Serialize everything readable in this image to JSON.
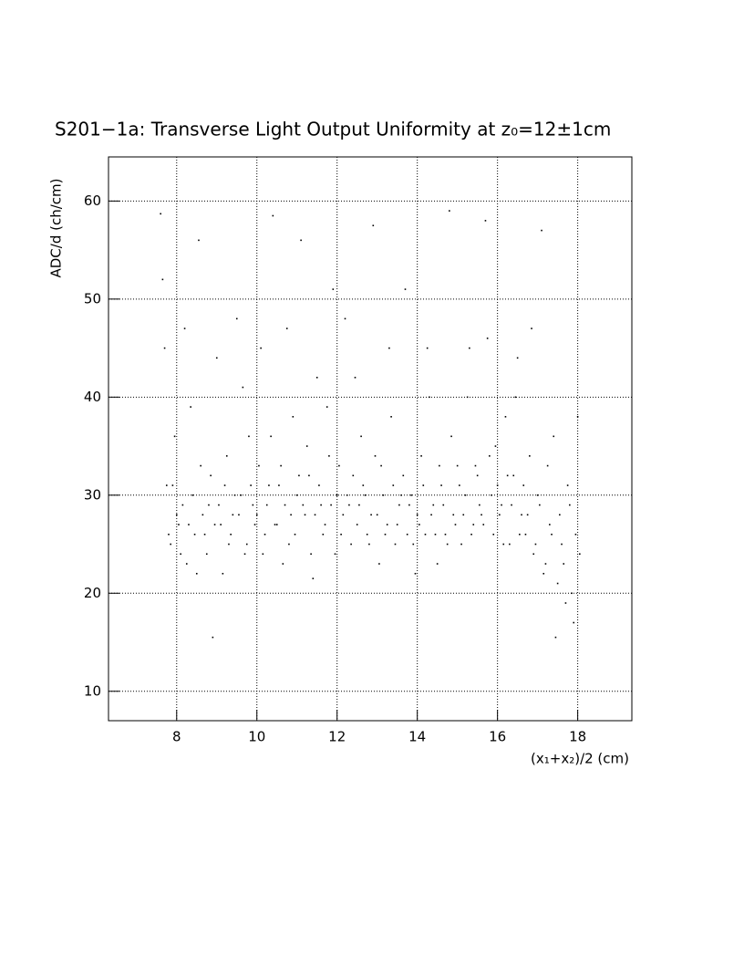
{
  "chart_data": {
    "type": "scatter",
    "title": "S201−1a: Transverse Light Output Uniformity at z₀=12±1cm",
    "x_label": "(x₁+x₂)/2 (cm)",
    "y_label": "ADC/d (ch/cm)",
    "color": "#000000",
    "grid": true,
    "xlim": [
      6.3,
      19.35
    ],
    "ylim": [
      7,
      64.5
    ],
    "xticks": [
      8,
      10,
      12,
      14,
      16,
      18
    ],
    "yticks": [
      10,
      20,
      30,
      40,
      50,
      60
    ],
    "x": [
      7.6,
      7.7,
      7.8,
      7.9,
      8.0,
      8.1,
      8.2,
      8.3,
      8.4,
      8.5,
      8.6,
      8.7,
      8.8,
      8.9,
      9.0,
      9.1,
      9.2,
      9.3,
      9.4,
      9.5,
      9.6,
      9.7,
      9.8,
      9.9,
      10.0,
      10.1,
      10.2,
      10.3,
      10.4,
      10.5,
      10.6,
      10.7,
      10.8,
      10.9,
      11.0,
      11.1,
      11.2,
      11.3,
      11.4,
      11.5,
      11.6,
      11.7,
      11.8,
      11.9,
      12.0,
      12.1,
      12.2,
      12.3,
      12.4,
      12.5,
      12.6,
      12.7,
      12.8,
      12.9,
      13.0,
      13.1,
      13.2,
      13.3,
      13.4,
      13.5,
      13.6,
      13.7,
      13.8,
      13.9,
      14.0,
      14.1,
      14.2,
      14.3,
      14.4,
      14.5,
      14.6,
      14.7,
      14.8,
      14.9,
      15.0,
      15.1,
      15.2,
      15.3,
      15.4,
      15.5,
      15.6,
      15.7,
      15.8,
      15.9,
      16.0,
      16.1,
      16.2,
      16.3,
      16.4,
      16.5,
      16.6,
      16.7,
      16.8,
      16.9,
      17.0,
      17.1,
      17.2,
      17.3,
      17.4,
      17.5,
      17.6,
      17.7,
      17.8,
      17.9,
      18.0,
      7.65,
      7.75,
      7.85,
      7.95,
      8.05,
      8.15,
      8.25,
      8.35,
      8.45,
      8.55,
      8.65,
      8.75,
      8.85,
      8.95,
      9.05,
      9.15,
      9.25,
      9.35,
      9.45,
      9.55,
      9.65,
      9.75,
      9.85,
      9.95,
      10.05,
      10.15,
      10.25,
      10.35,
      10.45,
      10.55,
      10.65,
      10.75,
      10.85,
      10.95,
      11.05,
      11.15,
      11.25,
      11.35,
      11.45,
      11.55,
      11.65,
      11.75,
      11.85,
      11.95,
      12.05,
      12.15,
      12.25,
      12.35,
      12.45,
      12.55,
      12.65,
      12.75,
      12.85,
      12.95,
      13.05,
      13.15,
      13.25,
      13.35,
      13.45,
      13.55,
      13.65,
      13.75,
      13.85,
      13.95,
      14.05,
      14.15,
      14.25,
      14.35,
      14.45,
      14.55,
      14.65,
      14.75,
      14.85,
      14.95,
      15.05,
      15.15,
      15.25,
      15.35,
      15.45,
      15.55,
      15.65,
      15.75,
      15.85,
      15.95,
      16.05,
      16.15,
      16.25,
      16.35,
      16.45,
      16.55,
      16.65,
      16.75,
      16.85,
      16.95,
      17.05,
      17.15,
      17.25,
      17.35,
      17.45,
      17.55,
      17.65,
      17.75,
      17.85,
      17.95,
      18.05
    ],
    "values": [
      58.7,
      45,
      26,
      31,
      28,
      24,
      47,
      27,
      30,
      22,
      33,
      26,
      29,
      15.5,
      44,
      27,
      31,
      25,
      28,
      48,
      30,
      24,
      36,
      29,
      28,
      45,
      26,
      31,
      58.5,
      27,
      33,
      29,
      25,
      38,
      30,
      56,
      28,
      32,
      21.5,
      42,
      29,
      27,
      34,
      51,
      30,
      26,
      48,
      29,
      32,
      27,
      36,
      30,
      25,
      57.5,
      28,
      33,
      26,
      45,
      31,
      27,
      30,
      51,
      29,
      25,
      28,
      34,
      26,
      40,
      29,
      23,
      31,
      26,
      59,
      28,
      33,
      25,
      30,
      45,
      27,
      32,
      28,
      58,
      34,
      26,
      31,
      29,
      38,
      25,
      32,
      44,
      28,
      26,
      34,
      24,
      30,
      57,
      23,
      27,
      36,
      21,
      25,
      19,
      29,
      17,
      38,
      52,
      31,
      25,
      36,
      27,
      29,
      23,
      39,
      26,
      56,
      28,
      24,
      32,
      27,
      29,
      22,
      34,
      26,
      30,
      28,
      41,
      25,
      31,
      27,
      33,
      24,
      29,
      36,
      27,
      31,
      23,
      47,
      28,
      26,
      32,
      29,
      35,
      24,
      28,
      31,
      26,
      39,
      29,
      24,
      33,
      28,
      30,
      25,
      42,
      29,
      31,
      26,
      28,
      34,
      23,
      30,
      27,
      38,
      25,
      29,
      32,
      26,
      30,
      22,
      27,
      31,
      45,
      28,
      26,
      33,
      29,
      25,
      36,
      27,
      31,
      28,
      40,
      26,
      33,
      29,
      27,
      46,
      30,
      35,
      28,
      25,
      32,
      29,
      40,
      26,
      31,
      28,
      47,
      25,
      29,
      22,
      33,
      26,
      15.5,
      28,
      23,
      31,
      20,
      26,
      24
    ]
  }
}
